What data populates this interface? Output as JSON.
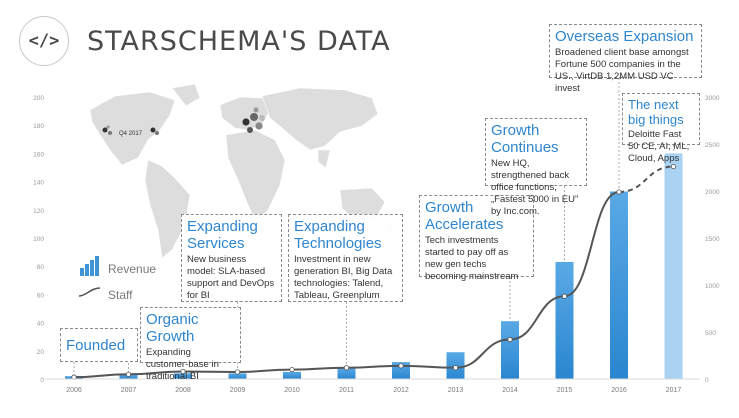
{
  "header": {
    "logo_symbol": "</>",
    "title": "STARSCHEMA'S DATA"
  },
  "colors": {
    "accent": "#2f86cf",
    "bar_start": "#2a8ad1",
    "bar_end": "#a9d2f3",
    "line": "#555555",
    "map": "#dddddd"
  },
  "legend": {
    "revenue_label": "Revenue",
    "staff_label": "Staff"
  },
  "map": {
    "label": "Q4 2017"
  },
  "annotations": [
    {
      "title": "Founded",
      "text": ""
    },
    {
      "title": "Organic Growth",
      "text": "Expanding customer-base in traditional BI"
    },
    {
      "title": "Expanding Services",
      "text": "New business model: SLA-based support and DevOps for BI"
    },
    {
      "title": "Expanding Technologies",
      "text": "Investment in new generation BI, Big Data technologies: Talend, Tableau, Greenplum"
    },
    {
      "title": "Growth Accelerates",
      "text": "Tech investments started to pay off as new gen techs becoming mainstream"
    },
    {
      "title": "Growth Continues",
      "text": "New HQ, strengthened back office functions, „Fastest 5000 in EU\" by Inc.com."
    },
    {
      "title": "Overseas Expansion",
      "text": "Broadened client base amongst Fortune 500 companies in the US., VirtDB 1,2MM USD VC invest"
    },
    {
      "title": "The next big things",
      "text": "Deloitte Fast 50 CE, AI, ML, Cloud, Apps"
    }
  ],
  "chart_data": {
    "type": "bar",
    "title": "STARSCHEMA'S DATA",
    "categories": [
      "2006",
      "2007",
      "2008",
      "2009",
      "2010",
      "2011",
      "2012",
      "2013",
      "2014",
      "2015",
      "2016",
      "2017"
    ],
    "series": [
      {
        "name": "Revenue",
        "type": "bar",
        "axis": "left",
        "values": [
          2,
          3,
          4,
          4,
          5,
          8,
          12,
          19,
          41,
          83,
          133,
          160
        ]
      },
      {
        "name": "Staff",
        "type": "line",
        "axis": "right",
        "values": [
          20,
          50,
          80,
          75,
          100,
          120,
          140,
          120,
          420,
          880,
          1990,
          2260
        ],
        "dashed_from_index": 10
      }
    ],
    "ylim_left": [
      0,
      200
    ],
    "yticks_left": [
      "0",
      "20",
      "40",
      "60",
      "80",
      "100",
      "120",
      "140",
      "160",
      "180",
      "200"
    ],
    "ylim_right": [
      0,
      3000
    ],
    "yticks_right": [
      "0",
      "500",
      "1000",
      "1500",
      "2000",
      "2500",
      "3000"
    ],
    "grid": false,
    "legend_position": "left"
  }
}
